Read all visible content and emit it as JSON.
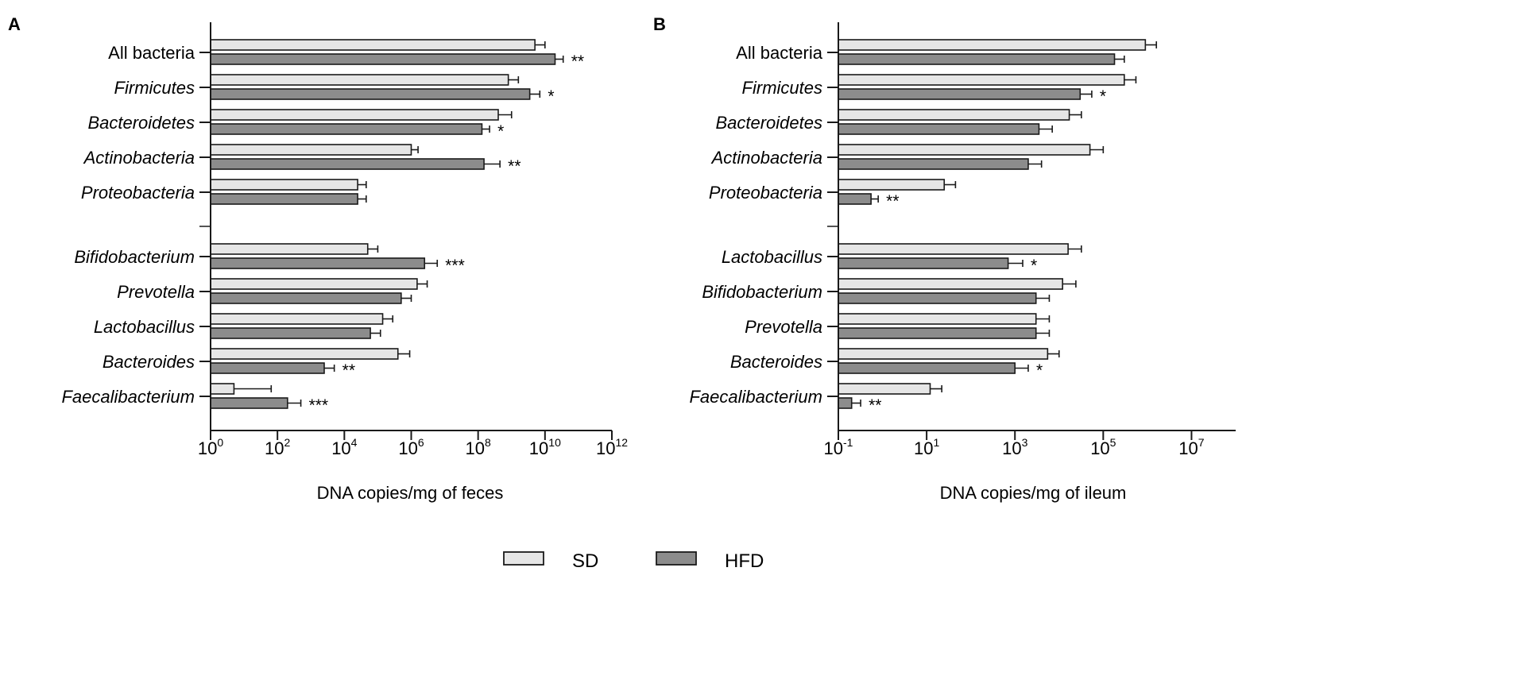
{
  "legend": {
    "items": [
      {
        "label": "SD",
        "color": "#e6e6e6"
      },
      {
        "label": "HFD",
        "color": "#8c8c8c"
      }
    ],
    "placement": "bottom-center"
  },
  "chart_data": [
    {
      "panel": "A",
      "type": "bar",
      "orientation": "horizontal",
      "xlabel": "DNA copies/mg of feces",
      "xscale": "log10",
      "xlim": [
        1,
        1000000000000.0
      ],
      "xticks": [
        {
          "base": "10",
          "exp": "0",
          "value": 1
        },
        {
          "base": "10",
          "exp": "2",
          "value": 100
        },
        {
          "base": "10",
          "exp": "4",
          "value": 10000
        },
        {
          "base": "10",
          "exp": "6",
          "value": 1000000
        },
        {
          "base": "10",
          "exp": "8",
          "value": 100000000
        },
        {
          "base": "10",
          "exp": "10",
          "value": 10000000000
        },
        {
          "base": "10",
          "exp": "12",
          "value": 1000000000000
        }
      ],
      "groups": [
        {
          "categories": [
            {
              "label": "All bacteria",
              "italic": false,
              "sd": 5000000000.0,
              "sd_err": 10000000000.0,
              "hfd": 20000000000.0,
              "hfd_err": 35000000000.0,
              "sig": "**"
            },
            {
              "label": "Firmicutes",
              "italic": true,
              "sd": 800000000.0,
              "sd_err": 1600000000.0,
              "hfd": 3500000000.0,
              "hfd_err": 7000000000.0,
              "sig": "*"
            },
            {
              "label": "Bacteroidetes",
              "italic": true,
              "sd": 400000000.0,
              "sd_err": 1000000000.0,
              "hfd": 130000000.0,
              "hfd_err": 220000000.0,
              "sig": "*"
            },
            {
              "label": "Actinobacteria",
              "italic": true,
              "sd": 1000000.0,
              "sd_err": 1600000.0,
              "hfd": 150000000.0,
              "hfd_err": 450000000.0,
              "sig": "**"
            },
            {
              "label": "Proteobacteria",
              "italic": true,
              "sd": 25000.0,
              "sd_err": 45000.0,
              "hfd": 25000.0,
              "hfd_err": 45000.0,
              "sig": ""
            }
          ]
        },
        {
          "categories": [
            {
              "label": "Bifidobacterium",
              "italic": true,
              "sd": 50000.0,
              "sd_err": 100000.0,
              "hfd": 2500000.0,
              "hfd_err": 6000000.0,
              "sig": "***"
            },
            {
              "label": "Prevotella",
              "italic": true,
              "sd": 1500000.0,
              "sd_err": 3000000.0,
              "hfd": 500000.0,
              "hfd_err": 1000000.0,
              "sig": ""
            },
            {
              "label": "Lactobacillus",
              "italic": true,
              "sd": 140000.0,
              "sd_err": 280000.0,
              "hfd": 60000.0,
              "hfd_err": 120000.0,
              "sig": ""
            },
            {
              "label": "Bacteroides",
              "italic": true,
              "sd": 400000.0,
              "sd_err": 900000.0,
              "hfd": 2500.0,
              "hfd_err": 5000.0,
              "sig": "**"
            },
            {
              "label": "Faecalibacterium",
              "italic": true,
              "sd": 5.0,
              "sd_err": 65,
              "hfd": 200,
              "hfd_err": 500,
              "sig": "***"
            }
          ]
        }
      ]
    },
    {
      "panel": "B",
      "type": "bar",
      "orientation": "horizontal",
      "xlabel": "DNA copies/mg of ileum",
      "xscale": "log10",
      "xlim": [
        0.1,
        100000000.0
      ],
      "xticks": [
        {
          "base": "10",
          "exp": "-1",
          "value": 0.1
        },
        {
          "base": "10",
          "exp": "1",
          "value": 10
        },
        {
          "base": "10",
          "exp": "3",
          "value": 1000
        },
        {
          "base": "10",
          "exp": "5",
          "value": 100000
        },
        {
          "base": "10",
          "exp": "7",
          "value": 10000000
        }
      ],
      "groups": [
        {
          "categories": [
            {
              "label": "All bacteria",
              "italic": false,
              "sd": 900000.0,
              "sd_err": 1600000.0,
              "hfd": 180000.0,
              "hfd_err": 300000.0,
              "sig": ""
            },
            {
              "label": "Firmicutes",
              "italic": true,
              "sd": 300000.0,
              "sd_err": 550000.0,
              "hfd": 30000.0,
              "hfd_err": 55000.0,
              "sig": "*"
            },
            {
              "label": "Bacteroidetes",
              "italic": true,
              "sd": 17000.0,
              "sd_err": 32000.0,
              "hfd": 3500.0,
              "hfd_err": 7000.0,
              "sig": ""
            },
            {
              "label": "Actinobacteria",
              "italic": true,
              "sd": 50000.0,
              "sd_err": 100000.0,
              "hfd": 2000.0,
              "hfd_err": 4000.0,
              "sig": ""
            },
            {
              "label": "Proteobacteria",
              "italic": true,
              "sd": 25,
              "sd_err": 45,
              "hfd": 0.55,
              "hfd_err": 0.8,
              "sig": "**"
            }
          ]
        },
        {
          "categories": [
            {
              "label": "Lactobacillus",
              "italic": true,
              "sd": 16000.0,
              "sd_err": 32000.0,
              "hfd": 700,
              "hfd_err": 1500.0,
              "sig": "*"
            },
            {
              "label": "Bifidobacterium",
              "italic": true,
              "sd": 12000.0,
              "sd_err": 24000.0,
              "hfd": 3000.0,
              "hfd_err": 6000.0,
              "sig": ""
            },
            {
              "label": "Prevotella",
              "italic": true,
              "sd": 3000.0,
              "sd_err": 6000.0,
              "hfd": 3000.0,
              "hfd_err": 6000.0,
              "sig": ""
            },
            {
              "label": "Bacteroides",
              "italic": true,
              "sd": 5500.0,
              "sd_err": 10000.0,
              "hfd": 1000.0,
              "hfd_err": 2000.0,
              "sig": "*"
            },
            {
              "label": "Faecalibacterium",
              "italic": true,
              "sd": 12,
              "sd_err": 22,
              "hfd": 0.2,
              "hfd_err": 0.32,
              "sig": "**"
            }
          ]
        }
      ]
    }
  ]
}
